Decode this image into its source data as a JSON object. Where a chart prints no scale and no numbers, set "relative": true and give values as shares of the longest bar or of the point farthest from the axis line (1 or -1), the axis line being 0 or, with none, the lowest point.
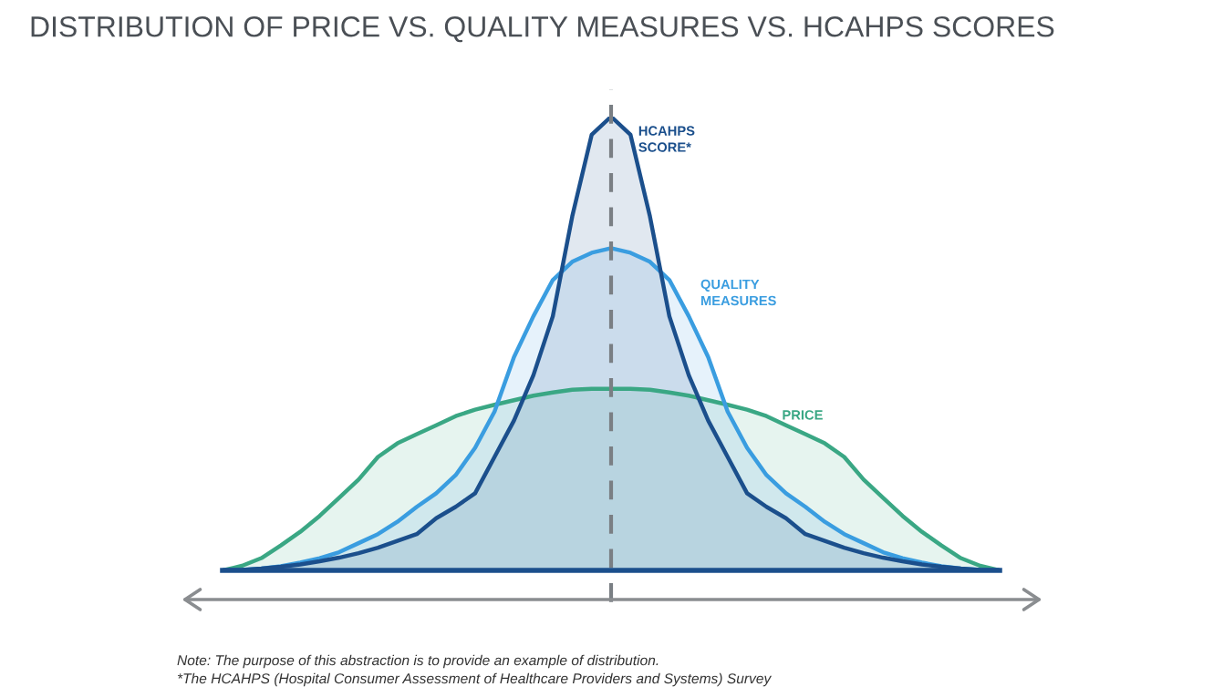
{
  "chart_data": {
    "type": "area",
    "title": "DISTRIBUTION OF PRICE VS. QUALITY MEASURES VS. HCAHPS SCORES",
    "relative": true,
    "categories": [
      null,
      null,
      null,
      null,
      null,
      null,
      null,
      null,
      null,
      null,
      null,
      null,
      null,
      null,
      null,
      null,
      null,
      null,
      null,
      null,
      null,
      null,
      null,
      null,
      null,
      null,
      null,
      null,
      null,
      null,
      null,
      null,
      null,
      null,
      null,
      null,
      null,
      null,
      null,
      null,
      null
    ],
    "series": [
      {
        "name": "PRICE",
        "color": "#3aa784",
        "values": [
          0,
          0.01,
          0.027,
          0.055,
          0.085,
          0.12,
          0.16,
          0.2,
          0.25,
          0.28,
          0.3,
          0.32,
          0.34,
          0.354,
          0.365,
          0.375,
          0.385,
          0.392,
          0.398,
          0.4,
          0.4,
          0.4,
          0.398,
          0.392,
          0.385,
          0.375,
          0.365,
          0.354,
          0.34,
          0.32,
          0.3,
          0.28,
          0.25,
          0.2,
          0.16,
          0.12,
          0.085,
          0.055,
          0.027,
          0.01,
          0
        ]
      },
      {
        "name": "QUALITY MEASURES",
        "color": "#3a9de0",
        "values": [
          0,
          0.001,
          0.004,
          0.009,
          0.017,
          0.027,
          0.04,
          0.06,
          0.08,
          0.107,
          0.14,
          0.17,
          0.21,
          0.27,
          0.35,
          0.47,
          0.56,
          0.64,
          0.68,
          0.7,
          0.71,
          0.7,
          0.68,
          0.64,
          0.56,
          0.47,
          0.35,
          0.27,
          0.21,
          0.17,
          0.14,
          0.107,
          0.08,
          0.06,
          0.04,
          0.027,
          0.017,
          0.009,
          0.004,
          0.001,
          0
        ]
      },
      {
        "name": "HCAHPS SCORE*",
        "color": "#1b4f8c",
        "values": [
          0,
          0.001,
          0.004,
          0.008,
          0.013,
          0.02,
          0.028,
          0.038,
          0.05,
          0.065,
          0.08,
          0.115,
          0.14,
          0.17,
          0.25,
          0.33,
          0.43,
          0.56,
          0.78,
          0.96,
          1,
          0.96,
          0.78,
          0.56,
          0.43,
          0.33,
          0.25,
          0.17,
          0.14,
          0.115,
          0.08,
          0.065,
          0.05,
          0.038,
          0.028,
          0.02,
          0.013,
          0.008,
          0.004,
          0.001,
          0
        ]
      }
    ],
    "annotations": [
      "Note: The purpose of this abstraction is to provide an example of distribution.",
      "*The HCAHPS (Hospital Consumer Assessment of Healthcare Providers and Systems) Survey"
    ]
  }
}
